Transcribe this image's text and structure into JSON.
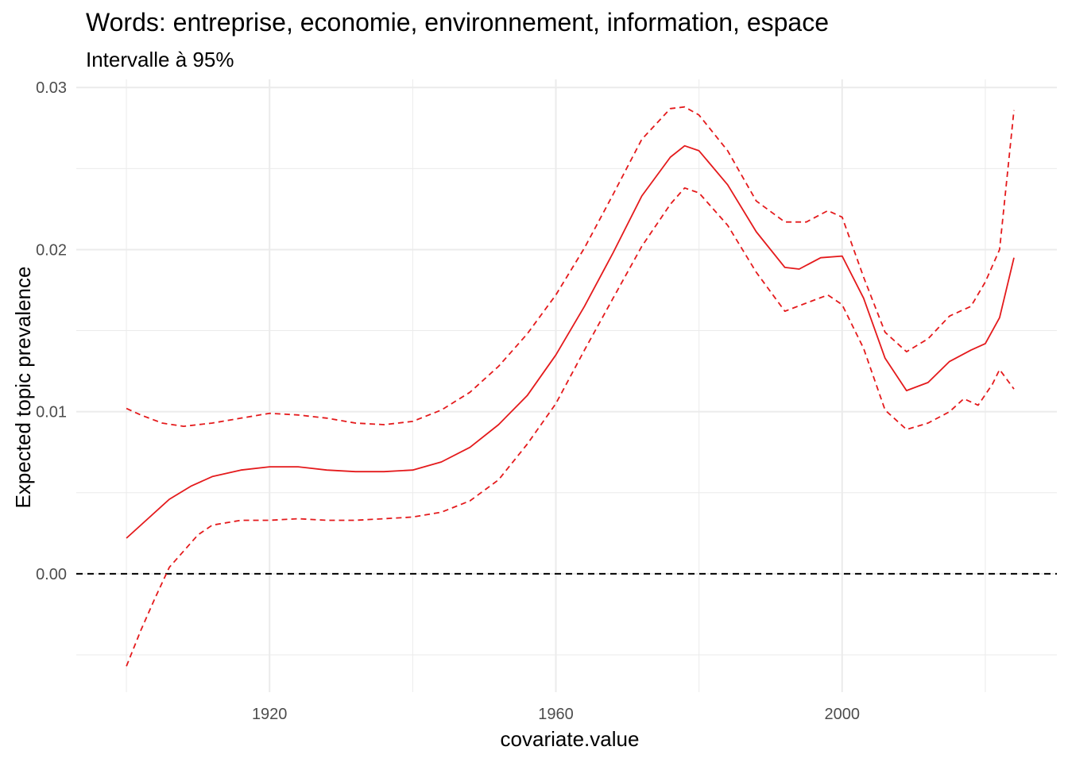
{
  "chart_data": {
    "type": "line",
    "title": "Words: entreprise, economie, environnement, information, espace",
    "subtitle": "Intervalle à 95%",
    "xlabel": "covariate.value",
    "ylabel": "Expected topic prevalence",
    "xlim": [
      1893,
      2030
    ],
    "ylim": [
      -0.0073,
      0.0305
    ],
    "x_ticks": [
      1920,
      1960,
      2000
    ],
    "x_tick_labels": [
      "1920",
      "1960",
      "2000"
    ],
    "y_ticks": [
      0.0,
      0.01,
      0.02,
      0.03
    ],
    "y_tick_labels": [
      "0.00",
      "0.01",
      "0.02",
      "0.03"
    ],
    "grid": true,
    "reference_line": {
      "y": 0.0,
      "style": "dashed",
      "color": "#000000"
    },
    "colors": {
      "series": "#e41a1c",
      "grid": "#ebebeb",
      "reference": "#000000"
    },
    "series": [
      {
        "role": "estimate",
        "style": "solid",
        "x": [
          1900,
          1903,
          1906,
          1909,
          1912,
          1916,
          1920,
          1924,
          1928,
          1932,
          1936,
          1940,
          1944,
          1948,
          1952,
          1956,
          1960,
          1964,
          1968,
          1972,
          1976,
          1978,
          1980,
          1984,
          1988,
          1992,
          1994,
          1997,
          2000,
          2003,
          2006,
          2009,
          2012,
          2015,
          2018,
          2020,
          2022,
          2024
        ],
        "y": [
          0.0022,
          0.0034,
          0.0046,
          0.0054,
          0.006,
          0.0064,
          0.0066,
          0.0066,
          0.0064,
          0.0063,
          0.0063,
          0.0064,
          0.0069,
          0.0078,
          0.0092,
          0.011,
          0.0135,
          0.0165,
          0.0198,
          0.0233,
          0.0257,
          0.0264,
          0.0261,
          0.024,
          0.0211,
          0.0189,
          0.0188,
          0.0195,
          0.0196,
          0.017,
          0.0133,
          0.0113,
          0.0118,
          0.0131,
          0.0138,
          0.0142,
          0.0158,
          0.0195
        ]
      },
      {
        "role": "upper-95",
        "style": "dashed",
        "x": [
          1900,
          1902,
          1905,
          1908,
          1912,
          1916,
          1920,
          1924,
          1928,
          1932,
          1936,
          1940,
          1944,
          1948,
          1952,
          1956,
          1960,
          1964,
          1968,
          1972,
          1976,
          1978,
          1980,
          1984,
          1988,
          1992,
          1995,
          1998,
          2000,
          2003,
          2006,
          2009,
          2012,
          2015,
          2018,
          2020,
          2022,
          2024
        ],
        "y": [
          0.0102,
          0.0098,
          0.0093,
          0.0091,
          0.0093,
          0.0096,
          0.0099,
          0.0098,
          0.0096,
          0.0093,
          0.0092,
          0.0094,
          0.0101,
          0.0112,
          0.0128,
          0.0148,
          0.0172,
          0.0201,
          0.0234,
          0.0268,
          0.0287,
          0.0288,
          0.0283,
          0.0261,
          0.023,
          0.0217,
          0.0217,
          0.0224,
          0.022,
          0.0183,
          0.0149,
          0.0137,
          0.0145,
          0.0159,
          0.0165,
          0.018,
          0.02,
          0.0286
        ]
      },
      {
        "role": "lower-95",
        "style": "dashed",
        "x": [
          1900,
          1902,
          1904,
          1906,
          1908,
          1910,
          1912,
          1916,
          1920,
          1924,
          1928,
          1932,
          1936,
          1940,
          1944,
          1948,
          1952,
          1956,
          1960,
          1964,
          1968,
          1972,
          1976,
          1978,
          1980,
          1984,
          1988,
          1992,
          1995,
          1998,
          2000,
          2003,
          2006,
          2009,
          2012,
          2015,
          2017,
          2019,
          2021,
          2022,
          2024
        ],
        "y": [
          -0.0057,
          -0.0035,
          -0.0015,
          0.0004,
          0.0014,
          0.0024,
          0.003,
          0.0033,
          0.0033,
          0.0034,
          0.0033,
          0.0033,
          0.0034,
          0.0035,
          0.0038,
          0.0045,
          0.0058,
          0.008,
          0.0105,
          0.0138,
          0.017,
          0.0202,
          0.0228,
          0.0238,
          0.0235,
          0.0215,
          0.0186,
          0.0162,
          0.0167,
          0.0172,
          0.0166,
          0.0139,
          0.0101,
          0.0089,
          0.0093,
          0.01,
          0.0108,
          0.0104,
          0.0117,
          0.0126,
          0.0114
        ]
      }
    ]
  }
}
